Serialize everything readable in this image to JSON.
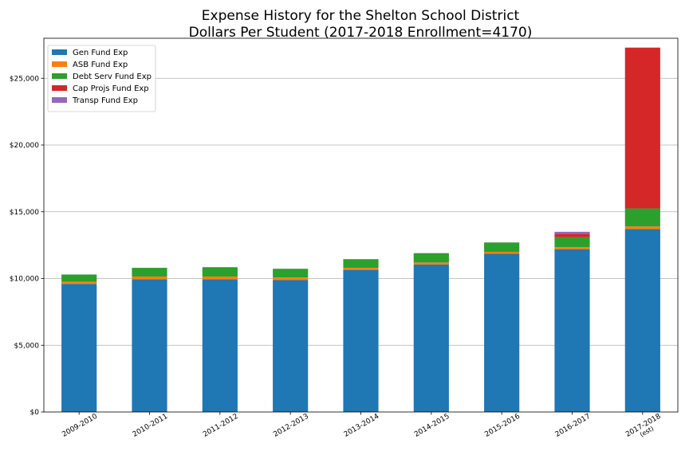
{
  "chart_data": {
    "type": "bar",
    "stacked": true,
    "title": "Expense History for the Shelton School District",
    "subtitle": "Dollars Per Student (2017-2018 Enrollment=4170)",
    "xlabel": "",
    "ylabel": "",
    "categories": [
      [
        "2009-2010"
      ],
      [
        "2010-2011"
      ],
      [
        "2011-2012"
      ],
      [
        "2012-2013"
      ],
      [
        "2013-2014"
      ],
      [
        "2014-2015"
      ],
      [
        "2015-2016"
      ],
      [
        "2016-2017"
      ],
      [
        "2017-2018",
        "(est)"
      ]
    ],
    "ylim": [
      0,
      28000
    ],
    "yticks": [
      0,
      5000,
      10000,
      15000,
      20000,
      25000
    ],
    "ytick_labels": [
      "$0",
      "$5,000",
      "$10,000",
      "$15,000",
      "$20,000",
      "$25,000"
    ],
    "grid": "horizontal",
    "legend_position": "top-left",
    "series": [
      {
        "name": "Gen Fund Exp",
        "color": "#1f77b4",
        "values": [
          9600,
          9950,
          9950,
          9880,
          10650,
          11050,
          11850,
          12200,
          13700
        ]
      },
      {
        "name": "ASB Fund Exp",
        "color": "#ff7f0e",
        "values": [
          150,
          200,
          200,
          200,
          150,
          150,
          150,
          150,
          200
        ]
      },
      {
        "name": "Debt Serv Fund Exp",
        "color": "#2ca02c",
        "values": [
          550,
          650,
          700,
          650,
          650,
          700,
          700,
          750,
          1350
        ]
      },
      {
        "name": "Cap Projs Fund Exp",
        "color": "#d62728",
        "values": [
          0,
          0,
          0,
          0,
          0,
          0,
          0,
          250,
          12050
        ]
      },
      {
        "name": "Transp Fund Exp",
        "color": "#9467bd",
        "values": [
          0,
          0,
          0,
          0,
          0,
          0,
          0,
          150,
          0
        ]
      }
    ]
  }
}
